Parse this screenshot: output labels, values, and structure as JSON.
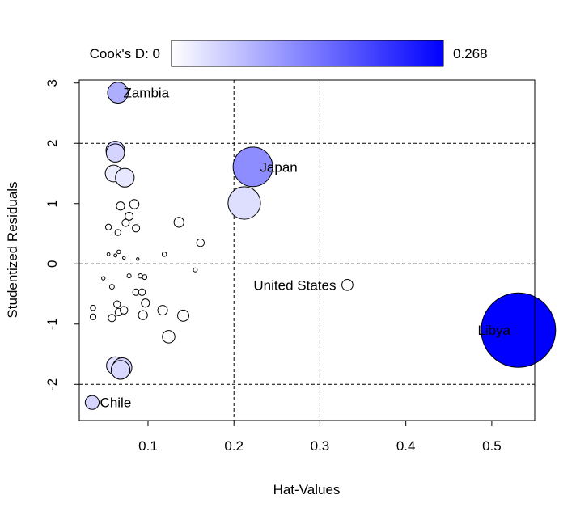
{
  "chart_data": {
    "type": "scatter",
    "xlabel": "Hat-Values",
    "ylabel": "Studentized Residuals",
    "xlim": [
      0.02,
      0.55
    ],
    "ylim": [
      -2.6,
      3.05
    ],
    "x_ticks": [
      0.1,
      0.2,
      0.3,
      0.4,
      0.5
    ],
    "x_tick_labels": [
      "0.1",
      "0.2",
      "0.3",
      "0.4",
      "0.5"
    ],
    "y_ticks": [
      -2,
      -1,
      0,
      1,
      2,
      3
    ],
    "y_tick_labels": [
      "-2",
      "-1",
      "0",
      "1",
      "2",
      "3"
    ],
    "reference_lines": {
      "horizontal": [
        -2,
        0,
        2
      ],
      "vertical": [
        0.2,
        0.3
      ],
      "style": "dashed"
    },
    "colorbar": {
      "label_left": "Cook's D: 0",
      "label_right": "0.268",
      "min": 0,
      "max": 0.268,
      "color_low": "#ffffff",
      "color_high": "#0000ff"
    },
    "points": [
      {
        "x": 0.065,
        "y": 2.84,
        "cookd": 0.085,
        "label": "Zambia"
      },
      {
        "x": 0.222,
        "y": 1.61,
        "cookd": 0.12,
        "label": "Japan"
      },
      {
        "x": 0.332,
        "y": -0.35,
        "cookd": 0.0,
        "label": "United States"
      },
      {
        "x": 0.531,
        "y": -1.1,
        "cookd": 0.268,
        "label": "Libya"
      },
      {
        "x": 0.035,
        "y": -2.3,
        "cookd": 0.045,
        "label": "Chile"
      },
      {
        "x": 0.062,
        "y": 1.88,
        "cookd": 0.055,
        "label": ""
      },
      {
        "x": 0.062,
        "y": 1.84,
        "cookd": 0.045,
        "label": ""
      },
      {
        "x": 0.06,
        "y": 1.5,
        "cookd": 0.02,
        "label": ""
      },
      {
        "x": 0.073,
        "y": 1.43,
        "cookd": 0.025,
        "label": ""
      },
      {
        "x": 0.212,
        "y": 1.01,
        "cookd": 0.035,
        "label": ""
      },
      {
        "x": 0.068,
        "y": 0.96,
        "cookd": 0.0,
        "label": ""
      },
      {
        "x": 0.084,
        "y": 0.99,
        "cookd": 0.0,
        "label": ""
      },
      {
        "x": 0.078,
        "y": 0.79,
        "cookd": 0.0,
        "label": ""
      },
      {
        "x": 0.074,
        "y": 0.68,
        "cookd": 0.0,
        "label": ""
      },
      {
        "x": 0.086,
        "y": 0.59,
        "cookd": 0.0,
        "label": ""
      },
      {
        "x": 0.054,
        "y": 0.61,
        "cookd": 0.0,
        "label": ""
      },
      {
        "x": 0.065,
        "y": 0.52,
        "cookd": 0.0,
        "label": ""
      },
      {
        "x": 0.136,
        "y": 0.69,
        "cookd": 0.0,
        "label": ""
      },
      {
        "x": 0.161,
        "y": 0.35,
        "cookd": 0.0,
        "label": ""
      },
      {
        "x": 0.054,
        "y": 0.16,
        "cookd": 0.0,
        "label": ""
      },
      {
        "x": 0.062,
        "y": 0.14,
        "cookd": 0.0,
        "label": ""
      },
      {
        "x": 0.066,
        "y": 0.2,
        "cookd": 0.0,
        "label": ""
      },
      {
        "x": 0.072,
        "y": 0.1,
        "cookd": 0.0,
        "label": ""
      },
      {
        "x": 0.088,
        "y": 0.08,
        "cookd": 0.0,
        "label": ""
      },
      {
        "x": 0.119,
        "y": 0.16,
        "cookd": 0.0,
        "label": ""
      },
      {
        "x": 0.155,
        "y": -0.1,
        "cookd": 0.0,
        "label": ""
      },
      {
        "x": 0.048,
        "y": -0.24,
        "cookd": 0.0,
        "label": ""
      },
      {
        "x": 0.058,
        "y": -0.38,
        "cookd": 0.0,
        "label": ""
      },
      {
        "x": 0.078,
        "y": -0.2,
        "cookd": 0.0,
        "label": ""
      },
      {
        "x": 0.091,
        "y": -0.2,
        "cookd": 0.0,
        "label": ""
      },
      {
        "x": 0.096,
        "y": -0.22,
        "cookd": 0.0,
        "label": ""
      },
      {
        "x": 0.086,
        "y": -0.47,
        "cookd": 0.0,
        "label": ""
      },
      {
        "x": 0.093,
        "y": -0.47,
        "cookd": 0.0,
        "label": ""
      },
      {
        "x": 0.036,
        "y": -0.73,
        "cookd": 0.0,
        "label": ""
      },
      {
        "x": 0.036,
        "y": -0.88,
        "cookd": 0.0,
        "label": ""
      },
      {
        "x": 0.064,
        "y": -0.67,
        "cookd": 0.0,
        "label": ""
      },
      {
        "x": 0.058,
        "y": -0.9,
        "cookd": 0.0,
        "label": ""
      },
      {
        "x": 0.066,
        "y": -0.8,
        "cookd": 0.0,
        "label": ""
      },
      {
        "x": 0.072,
        "y": -0.77,
        "cookd": 0.0,
        "label": ""
      },
      {
        "x": 0.097,
        "y": -0.65,
        "cookd": 0.0,
        "label": ""
      },
      {
        "x": 0.094,
        "y": -0.85,
        "cookd": 0.0,
        "label": ""
      },
      {
        "x": 0.117,
        "y": -0.77,
        "cookd": 0.0,
        "label": ""
      },
      {
        "x": 0.141,
        "y": -0.86,
        "cookd": 0.0,
        "label": ""
      },
      {
        "x": 0.124,
        "y": -1.21,
        "cookd": 0.0,
        "label": ""
      },
      {
        "x": 0.062,
        "y": -1.69,
        "cookd": 0.035,
        "label": ""
      },
      {
        "x": 0.07,
        "y": -1.72,
        "cookd": 0.045,
        "label": ""
      },
      {
        "x": 0.068,
        "y": -1.76,
        "cookd": 0.04,
        "label": ""
      }
    ]
  }
}
